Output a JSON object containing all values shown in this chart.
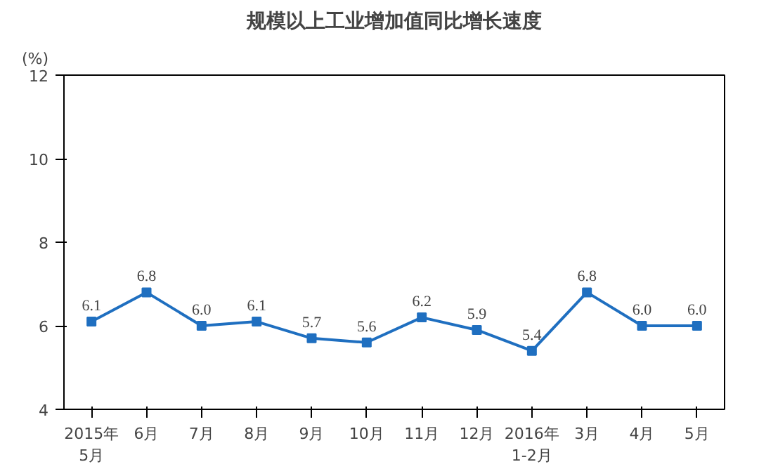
{
  "chart_data": {
    "type": "line",
    "title": "规模以上工业增加值同比增长速度",
    "ylabel": "(%)",
    "categories": [
      "2015年\n5月",
      "6月",
      "7月",
      "8月",
      "9月",
      "10月",
      "11月",
      "12月",
      "2016年\n1-2月",
      "3月",
      "4月",
      "5月"
    ],
    "series": [
      {
        "color": "#1f6fc0",
        "values": [
          6.1,
          6.8,
          6.0,
          6.1,
          5.7,
          5.6,
          6.2,
          5.9,
          5.4,
          6.8,
          6.0,
          6.0
        ],
        "value_labels": [
          "6.1",
          "6.8",
          "6.0",
          "6.1",
          "5.7",
          "5.6",
          "6.2",
          "5.9",
          "5.4",
          "6.8",
          "6.0",
          "6.0"
        ]
      }
    ],
    "ylim": [
      4,
      12
    ],
    "yticks": [
      4,
      6,
      8,
      10,
      12
    ],
    "marker": "square",
    "grid": false,
    "line_style": "solid"
  }
}
